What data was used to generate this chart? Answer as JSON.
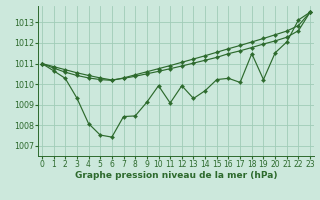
{
  "x": [
    0,
    1,
    2,
    3,
    4,
    5,
    6,
    7,
    8,
    9,
    10,
    11,
    12,
    13,
    14,
    15,
    16,
    17,
    18,
    19,
    20,
    21,
    22,
    23
  ],
  "line_straight1": [
    1011.0,
    1010.85,
    1010.7,
    1010.55,
    1010.42,
    1010.3,
    1010.2,
    1010.28,
    1010.38,
    1010.5,
    1010.62,
    1010.75,
    1010.88,
    1011.02,
    1011.16,
    1011.3,
    1011.48,
    1011.62,
    1011.78,
    1011.95,
    1012.1,
    1012.28,
    1012.6,
    1013.5
  ],
  "line_straight2": [
    1011.0,
    1010.78,
    1010.58,
    1010.42,
    1010.3,
    1010.22,
    1010.18,
    1010.3,
    1010.45,
    1010.6,
    1010.75,
    1010.9,
    1011.06,
    1011.22,
    1011.38,
    1011.55,
    1011.72,
    1011.88,
    1012.05,
    1012.22,
    1012.4,
    1012.58,
    1012.85,
    1013.5
  ],
  "line_jagged": [
    1011.0,
    1010.65,
    1010.28,
    1009.32,
    1008.08,
    1007.52,
    1007.42,
    1008.42,
    1008.45,
    1009.12,
    1009.92,
    1009.08,
    1009.92,
    1009.3,
    1009.68,
    1010.22,
    1010.28,
    1010.08,
    1011.48,
    1010.22,
    1011.52,
    1012.05,
    1013.12,
    1013.5
  ],
  "line_color": "#2d6a2d",
  "bg_color": "#cce8dc",
  "grid_color": "#a0ccb8",
  "xlabel": "Graphe pression niveau de la mer (hPa)",
  "ylim": [
    1006.5,
    1013.8
  ],
  "xlim": [
    -0.3,
    23.3
  ],
  "yticks": [
    1007,
    1008,
    1009,
    1010,
    1011,
    1012,
    1013
  ],
  "xticks": [
    0,
    1,
    2,
    3,
    4,
    5,
    6,
    7,
    8,
    9,
    10,
    11,
    12,
    13,
    14,
    15,
    16,
    17,
    18,
    19,
    20,
    21,
    22,
    23
  ],
  "label_fontsize": 6.5,
  "tick_fontsize": 5.5,
  "marker_size": 2.2,
  "line_width": 0.85
}
